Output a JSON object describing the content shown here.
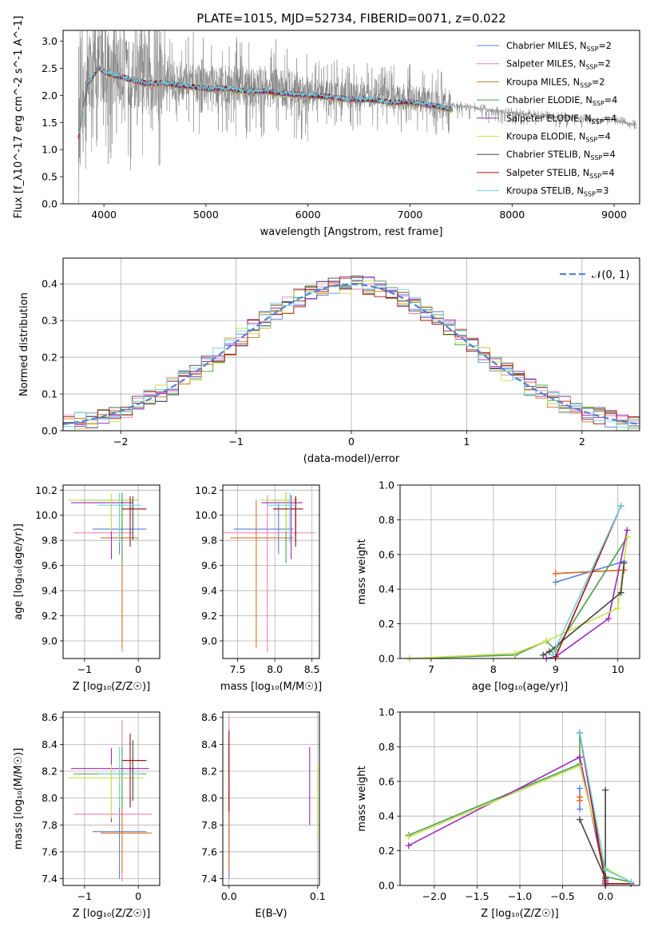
{
  "figure_title": "PLATE=1015, MJD=52734, FIBERID=0071, z=0.022",
  "colors": {
    "chabrier_miles": "#5a7fdb",
    "salpeter_miles": "#e87fb8",
    "kroupa_miles": "#e07020",
    "chabrier_elodie": "#4a9e4a",
    "salpeter_elodie": "#9c2ab8",
    "kroupa_elodie": "#c8e050",
    "chabrier_stelib": "#444444",
    "salpeter_stelib": "#a01010",
    "kroupa_stelib": "#70d0e0",
    "data_gray": "#808080",
    "normal_curve": "#5a7fdb",
    "grid": "#b0b0b0"
  },
  "chart_data": [
    {
      "id": "spectrum",
      "type": "line",
      "title": "PLATE=1015, MJD=52734, FIBERID=0071, z=0.022",
      "xlabel": "wavelength [Angstrom, rest frame]",
      "ylabel": "Flux [f_λ10^-17 erg cm^-2 s^-1 A^-1]",
      "xlim": [
        3600,
        9250
      ],
      "ylim": [
        0,
        3.2
      ],
      "xticks": [
        "4000",
        "5000",
        "6000",
        "7000",
        "8000",
        "9000"
      ],
      "yticks": [
        "0.0",
        "0.5",
        "1.0",
        "1.5",
        "2.0",
        "2.5",
        "3.0"
      ],
      "grid": false,
      "legend_position": "top-right",
      "legend": [
        {
          "name": "Chabrier MILES, N",
          "sub": "SSP",
          "eq": "=2",
          "color": "#5a7fdb"
        },
        {
          "name": "Salpeter MILES, N",
          "sub": "SSP",
          "eq": "=2",
          "color": "#e87fb8"
        },
        {
          "name": "Kroupa MILES, N",
          "sub": "SSP",
          "eq": "=2",
          "color": "#c08020"
        },
        {
          "name": "Chabrier ELODIE, N",
          "sub": "SSP",
          "eq": "=4",
          "color": "#4a9e4a"
        },
        {
          "name": "Salpeter ELODIE, N",
          "sub": "SSP",
          "eq": "=4",
          "color": "#9c2ab8"
        },
        {
          "name": "Kroupa ELODIE, N",
          "sub": "SSP",
          "eq": "=4",
          "color": "#e0e050"
        },
        {
          "name": "Chabrier STELIB, N",
          "sub": "SSP",
          "eq": "=4",
          "color": "#444444"
        },
        {
          "name": "Salpeter STELIB, N",
          "sub": "SSP",
          "eq": "=4",
          "color": "#a01010"
        },
        {
          "name": "Kroupa STELIB, N",
          "sub": "SSP",
          "eq": "=3",
          "color": "#70d0e0"
        }
      ],
      "continuum": {
        "x": [
          3750,
          3800,
          3850,
          3900,
          3950,
          4000,
          4100,
          4200,
          4300,
          4400,
          4600,
          4800,
          5000,
          5200,
          5400,
          5600,
          5800,
          6000,
          6200,
          6400,
          6600,
          6800,
          7000,
          7200,
          7400,
          7600,
          7800,
          8000,
          8200,
          8400,
          8600,
          8800,
          9000,
          9200
        ],
        "y": [
          1.3,
          1.9,
          2.3,
          2.45,
          2.6,
          2.5,
          2.45,
          2.4,
          2.35,
          2.3,
          2.3,
          2.25,
          2.2,
          2.2,
          2.15,
          2.15,
          2.1,
          2.08,
          2.05,
          2.0,
          2.0,
          1.95,
          1.95,
          1.9,
          1.82,
          1.78,
          1.72,
          1.68,
          1.65,
          1.62,
          1.6,
          1.55,
          1.55,
          1.45
        ]
      },
      "model_extent": [
        3750,
        7420
      ],
      "data_extent": [
        3750,
        9220
      ]
    },
    {
      "id": "residuals",
      "type": "histogram",
      "xlabel": "(data-model)/error",
      "ylabel": "Normed distribution",
      "xlim": [
        -2.5,
        2.5
      ],
      "ylim": [
        0,
        0.47
      ],
      "xticks": [
        "−2",
        "−1",
        "0",
        "1",
        "2"
      ],
      "yticks": [
        "0.0",
        "0.1",
        "0.2",
        "0.3",
        "0.4"
      ],
      "grid": true,
      "legend_position": "top-right",
      "legend": [
        {
          "name": "𝒩(0, 1)",
          "color": "#5a7fdb"
        }
      ],
      "bin_width": 0.1,
      "bin_start": -2.5,
      "noise_amplitude": 0.025
    },
    {
      "id": "age-vs-z",
      "type": "scatter",
      "xlabel": "Z [log₁₀(Z/Z☉)]",
      "ylabel": "age  [log₁₀(age/yr)]",
      "xlim": [
        -1.4,
        0.4
      ],
      "ylim": [
        8.86,
        10.24
      ],
      "xticks": [
        "−1",
        "0"
      ],
      "yticks": [
        "9.0",
        "9.2",
        "9.4",
        "9.6",
        "9.8",
        "10.0",
        "10.2"
      ],
      "grid": true,
      "points": [
        {
          "x": -0.35,
          "xerr": [
            0.5,
            0.5
          ],
          "y": 9.89,
          "yerr": [
            0.2,
            0.2
          ],
          "color": "#5a7fdb"
        },
        {
          "x": -0.3,
          "xerr": [
            0.9,
            0.2
          ],
          "y": 9.86,
          "yerr": [
            0.95,
            0.3
          ],
          "color": "#e87fb8"
        },
        {
          "x": -0.3,
          "xerr": [
            0.4,
            0.3
          ],
          "y": 9.82,
          "yerr": [
            0.88,
            0.3
          ],
          "color": "#e07020"
        },
        {
          "x": -0.3,
          "xerr": [
            0.8,
            0.3
          ],
          "y": 10.12,
          "yerr": [
            0.5,
            0.06
          ],
          "color": "#4a9e4a"
        },
        {
          "x": -0.5,
          "xerr": [
            0.75,
            0.4
          ],
          "y": 10.1,
          "yerr": [
            0.45,
            0.06
          ],
          "color": "#9c2ab8"
        },
        {
          "x": -0.5,
          "xerr": [
            0.8,
            0.5
          ],
          "y": 10.12,
          "yerr": [
            0.25,
            0.05
          ],
          "color": "#c8e050"
        },
        {
          "x": -0.1,
          "xerr": [
            0.2,
            0.25
          ],
          "y": 10.05,
          "yerr": [
            0.25,
            0.1
          ],
          "color": "#444444"
        },
        {
          "x": -0.15,
          "xerr": [
            0.15,
            0.3
          ],
          "y": 10.05,
          "yerr": [
            0.3,
            0.1
          ],
          "color": "#a01010"
        },
        {
          "x": -0.35,
          "xerr": [
            0.4,
            0.4
          ],
          "y": 10.08,
          "yerr": [
            0.3,
            0.1
          ],
          "color": "#70d0e0"
        }
      ]
    },
    {
      "id": "age-vs-mass",
      "type": "scatter",
      "xlabel": "mass [log₁₀(M/M☉)]",
      "ylabel": "",
      "xlim": [
        7.3,
        8.6
      ],
      "ylim": [
        8.86,
        10.24
      ],
      "xticks": [
        "7.5",
        "8.0",
        "8.5"
      ],
      "yticks": [
        "9.0",
        "9.2",
        "9.4",
        "9.6",
        "9.8",
        "10.0",
        "10.2"
      ],
      "grid": true,
      "points": [
        {
          "x": 8.05,
          "xerr": [
            0.6,
            0.2
          ],
          "y": 9.89,
          "yerr": [
            0.2,
            0.2
          ],
          "color": "#5a7fdb"
        },
        {
          "x": 7.9,
          "xerr": [
            0.6,
            0.65
          ],
          "y": 9.86,
          "yerr": [
            0.95,
            0.3
          ],
          "color": "#e87fb8"
        },
        {
          "x": 7.75,
          "xerr": [
            0.35,
            0.5
          ],
          "y": 9.82,
          "yerr": [
            0.88,
            0.3
          ],
          "color": "#e07020"
        },
        {
          "x": 8.15,
          "xerr": [
            0.2,
            0.15
          ],
          "y": 10.12,
          "yerr": [
            0.5,
            0.06
          ],
          "color": "#4a9e4a"
        },
        {
          "x": 8.22,
          "xerr": [
            0.4,
            0.15
          ],
          "y": 10.1,
          "yerr": [
            0.45,
            0.06
          ],
          "color": "#9c2ab8"
        },
        {
          "x": 8.15,
          "xerr": [
            0.35,
            0.13
          ],
          "y": 10.12,
          "yerr": [
            0.25,
            0.05
          ],
          "color": "#c8e050"
        },
        {
          "x": 8.28,
          "xerr": [
            0.3,
            0.1
          ],
          "y": 10.05,
          "yerr": [
            0.25,
            0.1
          ],
          "color": "#444444"
        },
        {
          "x": 8.28,
          "xerr": [
            0.3,
            0.1
          ],
          "y": 10.05,
          "yerr": [
            0.3,
            0.1
          ],
          "color": "#a01010"
        },
        {
          "x": 8.2,
          "xerr": [
            0.3,
            0.1
          ],
          "y": 10.08,
          "yerr": [
            0.3,
            0.1
          ],
          "color": "#70d0e0"
        }
      ]
    },
    {
      "id": "mass-weight-vs-age",
      "type": "line",
      "xlabel": "age  [log₁₀(age/yr)]",
      "ylabel": "mass weight",
      "xlim": [
        6.5,
        10.35
      ],
      "ylim": [
        0,
        1.0
      ],
      "xticks": [
        "7",
        "8",
        "9",
        "10"
      ],
      "yticks": [
        "0.0",
        "0.2",
        "0.4",
        "0.6",
        "0.8",
        "1.0"
      ],
      "grid": true,
      "series": [
        {
          "x": [
            9.0,
            10.1
          ],
          "y": [
            0.44,
            0.56
          ],
          "color": "#5a7fdb"
        },
        {
          "x": [
            9.0,
            10.1
          ],
          "y": [
            0.49,
            0.51
          ],
          "color": "#e87fb8"
        },
        {
          "x": [
            9.0,
            10.1
          ],
          "y": [
            0.49,
            0.51
          ],
          "color": "#e07020"
        },
        {
          "x": [
            6.65,
            8.35,
            8.85,
            9.0,
            10.15
          ],
          "y": [
            0.0,
            0.02,
            0.1,
            0.05,
            0.7
          ],
          "color": "#4a9e4a"
        },
        {
          "x": [
            8.85,
            9.0,
            9.85,
            10.15
          ],
          "y": [
            0.0,
            0.01,
            0.23,
            0.74
          ],
          "color": "#9c2ab8"
        },
        {
          "x": [
            6.65,
            8.35,
            8.85,
            10.0,
            10.15
          ],
          "y": [
            0.0,
            0.03,
            0.1,
            0.29,
            0.7
          ],
          "color": "#c8e050"
        },
        {
          "x": [
            8.8,
            8.9,
            10.05,
            10.1
          ],
          "y": [
            0.02,
            0.04,
            0.38,
            0.55
          ],
          "color": "#444444"
        },
        {
          "x": [
            9.0,
            10.05
          ],
          "y": [
            0.01,
            0.88
          ],
          "color": "#a01010"
        },
        {
          "x": [
            8.95,
            10.05
          ],
          "y": [
            0.02,
            0.88
          ],
          "color": "#70d0e0"
        }
      ]
    },
    {
      "id": "mass-vs-z",
      "type": "scatter",
      "xlabel": "Z [log₁₀(Z/Z☉)]",
      "ylabel": "mass [log₁₀(M/M☉)]",
      "xlim": [
        -1.4,
        0.4
      ],
      "ylim": [
        7.35,
        8.64
      ],
      "xticks": [
        "−1",
        "0"
      ],
      "yticks": [
        "7.4",
        "7.6",
        "7.8",
        "8.0",
        "8.2",
        "8.4",
        "8.6"
      ],
      "grid": true,
      "points": [
        {
          "x": -0.35,
          "xerr": [
            0.5,
            0.5
          ],
          "y": 7.75,
          "yerr": [
            0.35,
            0.35
          ],
          "color": "#5a7fdb"
        },
        {
          "x": -0.3,
          "xerr": [
            0.9,
            0.55
          ],
          "y": 7.88,
          "yerr": [
            0.5,
            0.7
          ],
          "color": "#e87fb8"
        },
        {
          "x": -0.3,
          "xerr": [
            0.4,
            0.55
          ],
          "y": 7.74,
          "yerr": [
            0.3,
            0.3
          ],
          "color": "#e07020"
        },
        {
          "x": -0.3,
          "xerr": [
            0.9,
            0.45
          ],
          "y": 8.18,
          "yerr": [
            0.25,
            0.2
          ],
          "color": "#4a9e4a"
        },
        {
          "x": -0.5,
          "xerr": [
            0.75,
            0.7
          ],
          "y": 8.22,
          "yerr": [
            0.4,
            0.15
          ],
          "color": "#9c2ab8"
        },
        {
          "x": -0.5,
          "xerr": [
            0.8,
            0.6
          ],
          "y": 8.15,
          "yerr": [
            0.3,
            0.1
          ],
          "color": "#c8e050"
        },
        {
          "x": -0.1,
          "xerr": [
            0.2,
            0.25
          ],
          "y": 8.28,
          "yerr": [
            0.3,
            0.15
          ],
          "color": "#444444"
        },
        {
          "x": -0.15,
          "xerr": [
            0.15,
            0.3
          ],
          "y": 8.28,
          "yerr": [
            0.35,
            0.2
          ],
          "color": "#a01010"
        },
        {
          "x": -0.35,
          "xerr": [
            0.4,
            0.4
          ],
          "y": 8.18,
          "yerr": [
            0.25,
            0.2
          ],
          "color": "#70d0e0"
        }
      ]
    },
    {
      "id": "mass-vs-ebv",
      "type": "scatter",
      "xlabel": "E(B-V)",
      "ylabel": "",
      "xlim": [
        -0.007,
        0.102
      ],
      "ylim": [
        7.35,
        8.64
      ],
      "xticks": [
        "0.0",
        "0.1"
      ],
      "yticks": [
        "7.4",
        "7.6",
        "7.8",
        "8.0",
        "8.2",
        "8.4",
        "8.6"
      ],
      "grid": true,
      "points": [
        {
          "x": 0.0,
          "y": 7.9,
          "yerr": [
            0.5,
            0.5
          ],
          "color": "#5a7fdb"
        },
        {
          "x": 0.0,
          "y": 8.0,
          "yerr": [
            0.4,
            0.6
          ],
          "color": "#e87fb8"
        },
        {
          "x": 0.0,
          "y": 7.8,
          "yerr": [
            0.35,
            0.4
          ],
          "color": "#e07020"
        },
        {
          "x": 0.0,
          "y": 8.2,
          "yerr": [
            0.3,
            0.3
          ],
          "color": "#a01010"
        },
        {
          "x": 0.091,
          "y": 8.1,
          "yerr": [
            0.3,
            0.28
          ],
          "color": "#9c2ab8"
        },
        {
          "x": 0.1,
          "y": 7.95,
          "yerr": [
            0.25,
            0.3
          ],
          "color": "#c8e050"
        }
      ]
    },
    {
      "id": "mass-weight-vs-z",
      "type": "line",
      "xlabel": "Z [log₁₀(Z/Z☉)]",
      "ylabel": "mass weight",
      "xlim": [
        -2.4,
        0.4
      ],
      "ylim": [
        0,
        1.0
      ],
      "xticks": [
        "−2.0",
        "−1.5",
        "−1.0",
        "−0.5",
        "0.0"
      ],
      "yticks": [
        "0.0",
        "0.2",
        "0.4",
        "0.6",
        "0.8",
        "1.0"
      ],
      "grid": true,
      "series": [
        {
          "x": [
            -0.3,
            -0.3
          ],
          "y": [
            0.44,
            0.56
          ],
          "color": "#5a7fdb"
        },
        {
          "x": [
            -0.3,
            -0.3
          ],
          "y": [
            0.49,
            0.51
          ],
          "color": "#e87fb8"
        },
        {
          "x": [
            -0.3,
            -0.3
          ],
          "y": [
            0.49,
            0.51
          ],
          "color": "#e07020"
        },
        {
          "x": [
            -2.3,
            -0.3,
            -0.3,
            0.0,
            0.3
          ],
          "y": [
            0.29,
            0.7,
            0.88,
            0.05,
            0.02
          ],
          "color": "#4a9e4a"
        },
        {
          "x": [
            -2.3,
            -0.3,
            0.0,
            0.0
          ],
          "y": [
            0.23,
            0.74,
            0.03,
            0.0
          ],
          "color": "#9c2ab8"
        },
        {
          "x": [
            -2.3,
            -0.3,
            0.0,
            0.3
          ],
          "y": [
            0.28,
            0.69,
            0.1,
            0.02
          ],
          "color": "#c8e050"
        },
        {
          "x": [
            -0.3,
            0.0,
            0.0,
            0.0
          ],
          "y": [
            0.38,
            0.04,
            0.55,
            0.02
          ],
          "color": "#444444"
        },
        {
          "x": [
            -0.3,
            0.0,
            0.3
          ],
          "y": [
            0.88,
            0.01,
            0.01
          ],
          "color": "#a01010"
        },
        {
          "x": [
            -0.3,
            0.0,
            0.3
          ],
          "y": [
            0.88,
            0.09,
            0.02
          ],
          "color": "#70d0e0"
        }
      ]
    }
  ]
}
